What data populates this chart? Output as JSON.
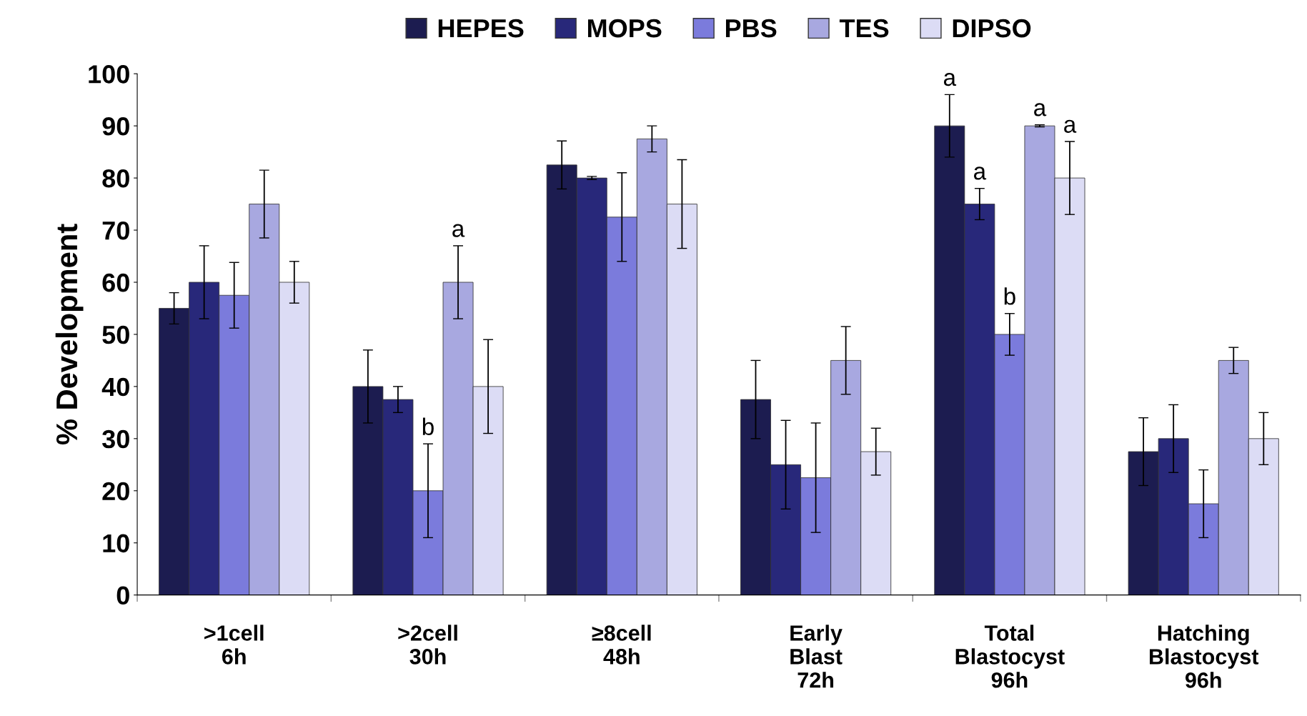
{
  "chart_data": {
    "type": "bar",
    "ylabel": "% Development",
    "categories": [
      ">1cell\n6h",
      ">2cell\n30h",
      "≥8cell\n48h",
      "Early\nBlast\n72h",
      "Total\nBlastocyst\n96h",
      "Hatching\nBlastocyst\n96h"
    ],
    "series": [
      {
        "name": "HEPES",
        "color": "#1c1c50",
        "values": [
          55,
          40,
          82.5,
          37.5,
          90,
          27.5
        ],
        "errors": [
          3,
          7,
          4.6,
          7.5,
          6,
          6.5
        ],
        "value_labels": [
          null,
          null,
          null,
          null,
          "a",
          null
        ]
      },
      {
        "name": "MOPS",
        "color": "#28287a",
        "values": [
          60,
          37.5,
          80,
          25,
          75,
          30
        ],
        "errors": [
          7,
          2.5,
          0.3,
          8.5,
          3,
          6.5
        ],
        "value_labels": [
          null,
          null,
          null,
          null,
          "a",
          null
        ]
      },
      {
        "name": "PBS",
        "color": "#7b7bdc",
        "values": [
          57.5,
          20,
          72.5,
          22.5,
          50,
          17.5
        ],
        "errors": [
          6.3,
          9,
          8.5,
          10.5,
          4,
          6.5
        ],
        "value_labels": [
          null,
          "b",
          null,
          null,
          "b",
          null
        ]
      },
      {
        "name": "TES",
        "color": "#a8a8e0",
        "values": [
          75,
          60,
          87.5,
          45,
          90,
          45
        ],
        "errors": [
          6.5,
          7,
          2.5,
          6.5,
          0.2,
          2.5
        ],
        "value_labels": [
          null,
          "a",
          null,
          null,
          "a",
          null
        ]
      },
      {
        "name": "DIPSO",
        "color": "#dcdcf5",
        "values": [
          60,
          40,
          75,
          27.5,
          80,
          30
        ],
        "errors": [
          4,
          9,
          8.5,
          4.5,
          7,
          5
        ],
        "value_labels": [
          null,
          null,
          null,
          null,
          "a",
          null
        ]
      }
    ],
    "ylim": [
      0,
      100
    ],
    "yticks": [
      0,
      10,
      20,
      30,
      40,
      50,
      60,
      70,
      80,
      90,
      100
    ],
    "legend": "top",
    "grid": false
  }
}
